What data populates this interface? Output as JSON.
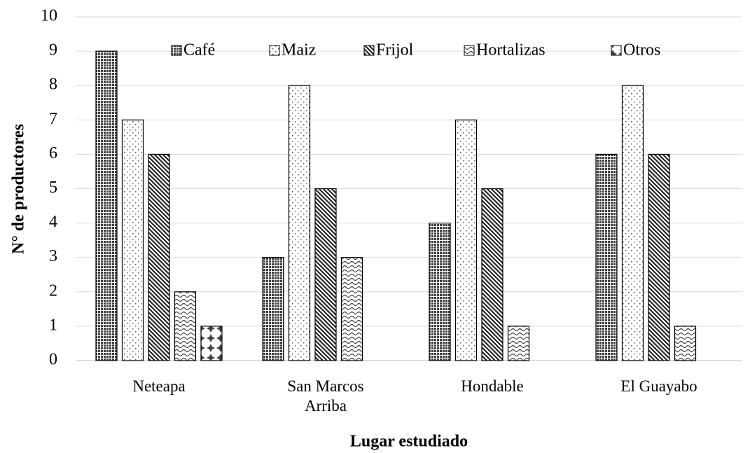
{
  "chart_data": {
    "type": "bar",
    "x_label": "Lugar estudiado",
    "y_label": "N° de productores",
    "categories": [
      "Neteapa",
      "San Marcos Arriba",
      "Hondable",
      "El Guayabo"
    ],
    "series": [
      {
        "name": "Café",
        "color": "#404040",
        "values": [
          9,
          3,
          4,
          6
        ]
      },
      {
        "name": "Maiz",
        "color": "#595959",
        "values": [
          7,
          8,
          7,
          8
        ]
      },
      {
        "name": "Frijol",
        "color": "#262626",
        "values": [
          6,
          5,
          5,
          6
        ]
      },
      {
        "name": "Hortalizas",
        "color": "#404040",
        "values": [
          2,
          3,
          1,
          1
        ]
      },
      {
        "name": "Otros",
        "color": "#404040",
        "values": [
          1,
          0,
          0,
          0
        ]
      }
    ],
    "ylim": [
      0,
      10
    ],
    "yticks": [
      0,
      1,
      2,
      3,
      4,
      5,
      6,
      7,
      8,
      9,
      10
    ],
    "grid": true,
    "legend": "top"
  }
}
